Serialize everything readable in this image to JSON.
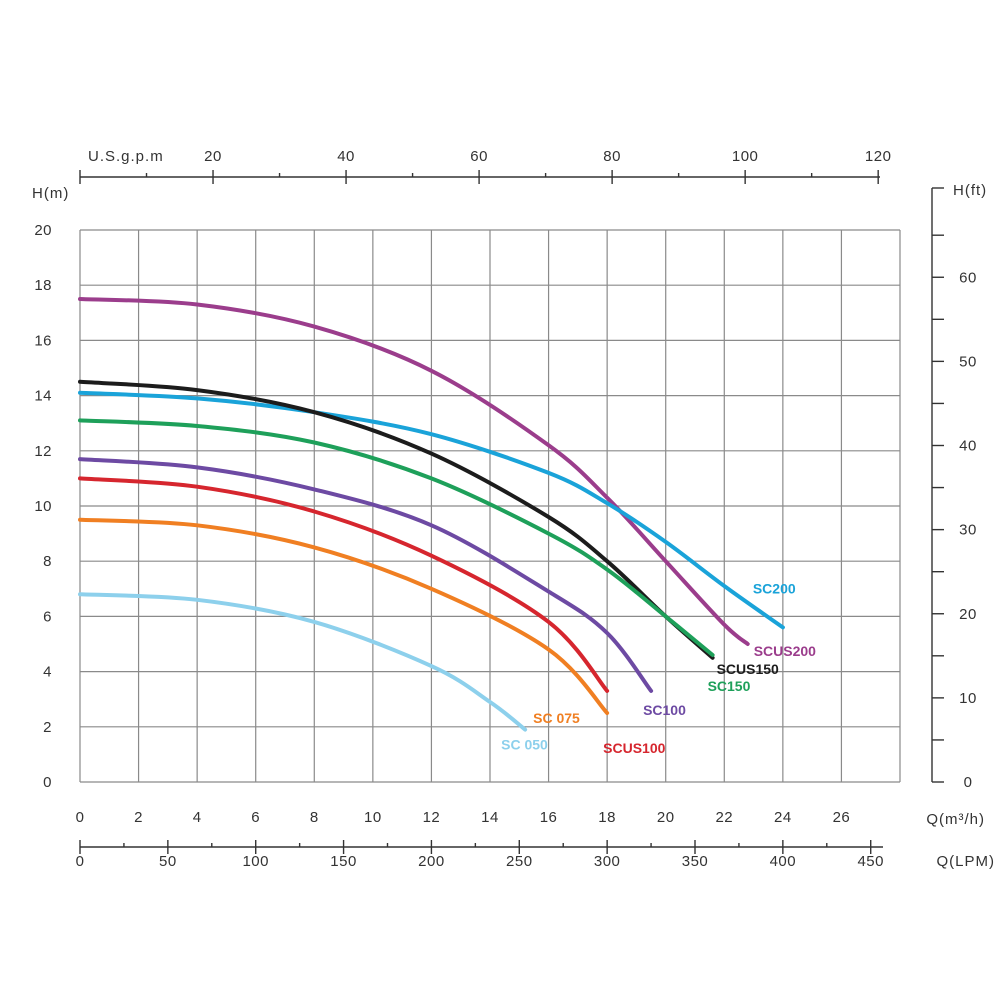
{
  "chart_data": {
    "type": "line",
    "x_label": "Q(m³/h)",
    "x_ticks": [
      0,
      2,
      4,
      6,
      8,
      10,
      12,
      14,
      16,
      18,
      20,
      22,
      24,
      26
    ],
    "xlim": [
      0,
      28
    ],
    "y_label": "H(m)",
    "y_ticks": [
      0,
      2,
      4,
      6,
      8,
      10,
      12,
      14,
      16,
      18,
      20
    ],
    "ylim": [
      0,
      20
    ],
    "grid": true,
    "secondary_axes": {
      "top": {
        "label": "U.S.g.p.m",
        "ticks": [
          20,
          40,
          60,
          80,
          100,
          120
        ]
      },
      "bottom": {
        "label": "Q(LPM)",
        "ticks": [
          0,
          50,
          100,
          150,
          200,
          250,
          300,
          350,
          400,
          450
        ]
      },
      "right": {
        "label": "H(ft)",
        "ticks": [
          0,
          10,
          20,
          30,
          40,
          50,
          60
        ]
      }
    },
    "series": [
      {
        "name": "SCUS200",
        "color": "#9b3d8c",
        "points": [
          [
            0,
            17.5
          ],
          [
            4,
            17.3
          ],
          [
            8,
            16.5
          ],
          [
            12,
            14.9
          ],
          [
            16,
            12.2
          ],
          [
            18,
            10.3
          ],
          [
            20,
            8.0
          ],
          [
            22,
            5.7
          ],
          [
            22.8,
            5.0
          ]
        ]
      },
      {
        "name": "SC200",
        "color": "#1aa3d9",
        "points": [
          [
            0,
            14.1
          ],
          [
            4,
            13.9
          ],
          [
            8,
            13.4
          ],
          [
            12,
            12.6
          ],
          [
            16,
            11.2
          ],
          [
            18,
            10.1
          ],
          [
            20,
            8.7
          ],
          [
            22,
            7.1
          ],
          [
            24,
            5.6
          ]
        ]
      },
      {
        "name": "SCUS150",
        "color": "#1c1c1c",
        "points": [
          [
            0,
            14.5
          ],
          [
            4,
            14.2
          ],
          [
            8,
            13.4
          ],
          [
            12,
            11.9
          ],
          [
            16,
            9.6
          ],
          [
            18,
            8.0
          ],
          [
            20,
            6.0
          ],
          [
            21.6,
            4.5
          ]
        ]
      },
      {
        "name": "SC150",
        "color": "#1ea05a",
        "points": [
          [
            0,
            13.1
          ],
          [
            4,
            12.9
          ],
          [
            8,
            12.3
          ],
          [
            12,
            11.0
          ],
          [
            16,
            9.0
          ],
          [
            18,
            7.7
          ],
          [
            20,
            6.0
          ],
          [
            21.6,
            4.6
          ]
        ]
      },
      {
        "name": "SC100",
        "color": "#6d4aa3",
        "points": [
          [
            0,
            11.7
          ],
          [
            4,
            11.4
          ],
          [
            8,
            10.6
          ],
          [
            12,
            9.3
          ],
          [
            16,
            6.9
          ],
          [
            18,
            5.4
          ],
          [
            19.5,
            3.3
          ]
        ]
      },
      {
        "name": "SCUS100",
        "color": "#d6262e",
        "points": [
          [
            0,
            11.0
          ],
          [
            4,
            10.7
          ],
          [
            8,
            9.8
          ],
          [
            12,
            8.2
          ],
          [
            16,
            5.8
          ],
          [
            18,
            3.3
          ]
        ]
      },
      {
        "name": "SC 075",
        "color": "#f07f22",
        "points": [
          [
            0,
            9.5
          ],
          [
            4,
            9.3
          ],
          [
            8,
            8.5
          ],
          [
            12,
            7.0
          ],
          [
            16,
            4.8
          ],
          [
            18,
            2.5
          ]
        ]
      },
      {
        "name": "SC 050",
        "color": "#8dd0ec",
        "points": [
          [
            0,
            6.8
          ],
          [
            4,
            6.6
          ],
          [
            8,
            5.8
          ],
          [
            12,
            4.2
          ],
          [
            14,
            2.9
          ],
          [
            15.2,
            1.9
          ]
        ]
      }
    ]
  }
}
